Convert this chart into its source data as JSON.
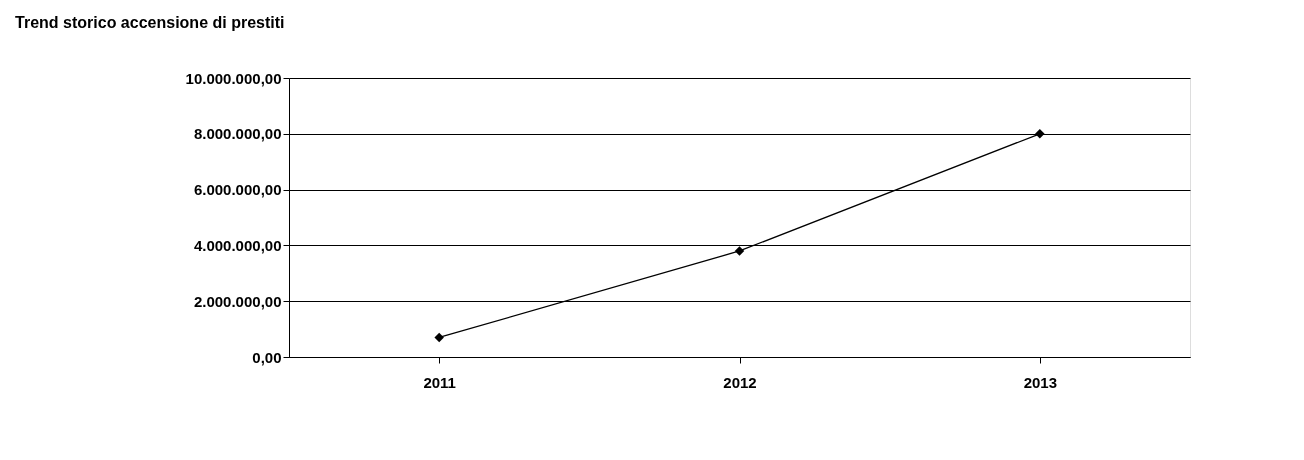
{
  "chart_data": {
    "type": "line",
    "title": "Trend storico accensione di prestiti",
    "categories": [
      "2011",
      "2012",
      "2013"
    ],
    "series": [
      {
        "color": "#000000",
        "values": [
          700000,
          3800000,
          8000000
        ]
      }
    ],
    "ylim": [
      0,
      10000000
    ],
    "yticks": [
      {
        "value": 0,
        "label": "0,00"
      },
      {
        "value": 2000000,
        "label": "2.000.000,00"
      },
      {
        "value": 4000000,
        "label": "4.000.000,00"
      },
      {
        "value": 6000000,
        "label": "6.000.000,00"
      },
      {
        "value": 8000000,
        "label": "8.000.000,00"
      },
      {
        "value": 10000000,
        "label": "10.000.000,00"
      }
    ],
    "grid": "y",
    "marker": "diamond",
    "line_style": "solid"
  }
}
